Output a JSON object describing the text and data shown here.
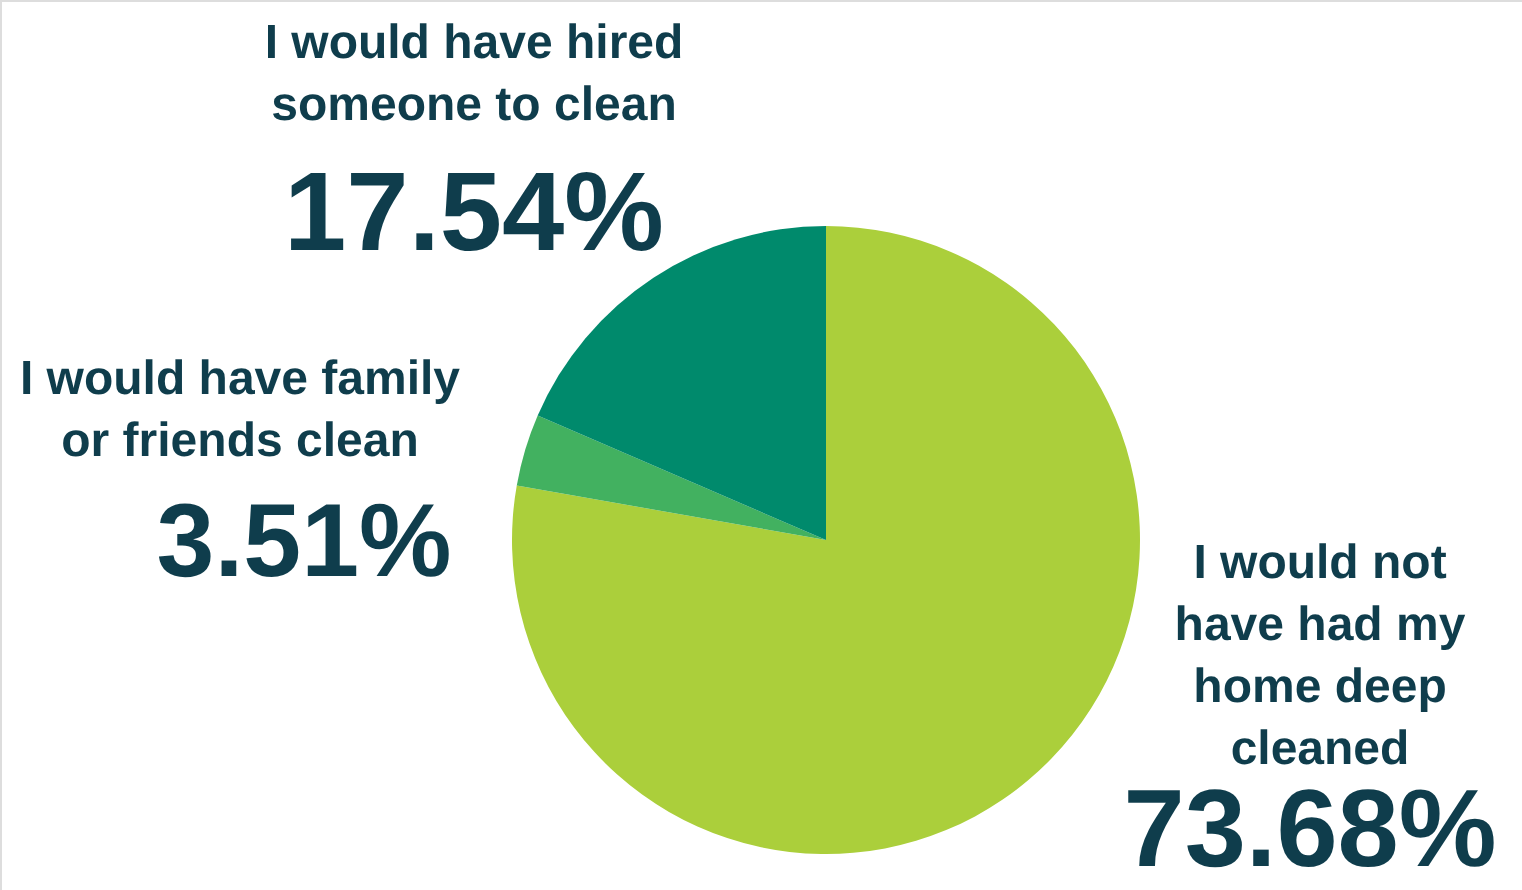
{
  "chart_data": {
    "type": "pie",
    "categories": [
      "I would not have had my home deep cleaned",
      "I would have family or friends clean",
      "I would have hired someone to clean"
    ],
    "values": [
      73.68,
      3.51,
      17.54
    ],
    "value_labels": [
      "73.68%",
      "3.51%",
      "17.54%"
    ],
    "colors": [
      "#abcf3b",
      "#42b160",
      "#008a6c"
    ]
  }
}
